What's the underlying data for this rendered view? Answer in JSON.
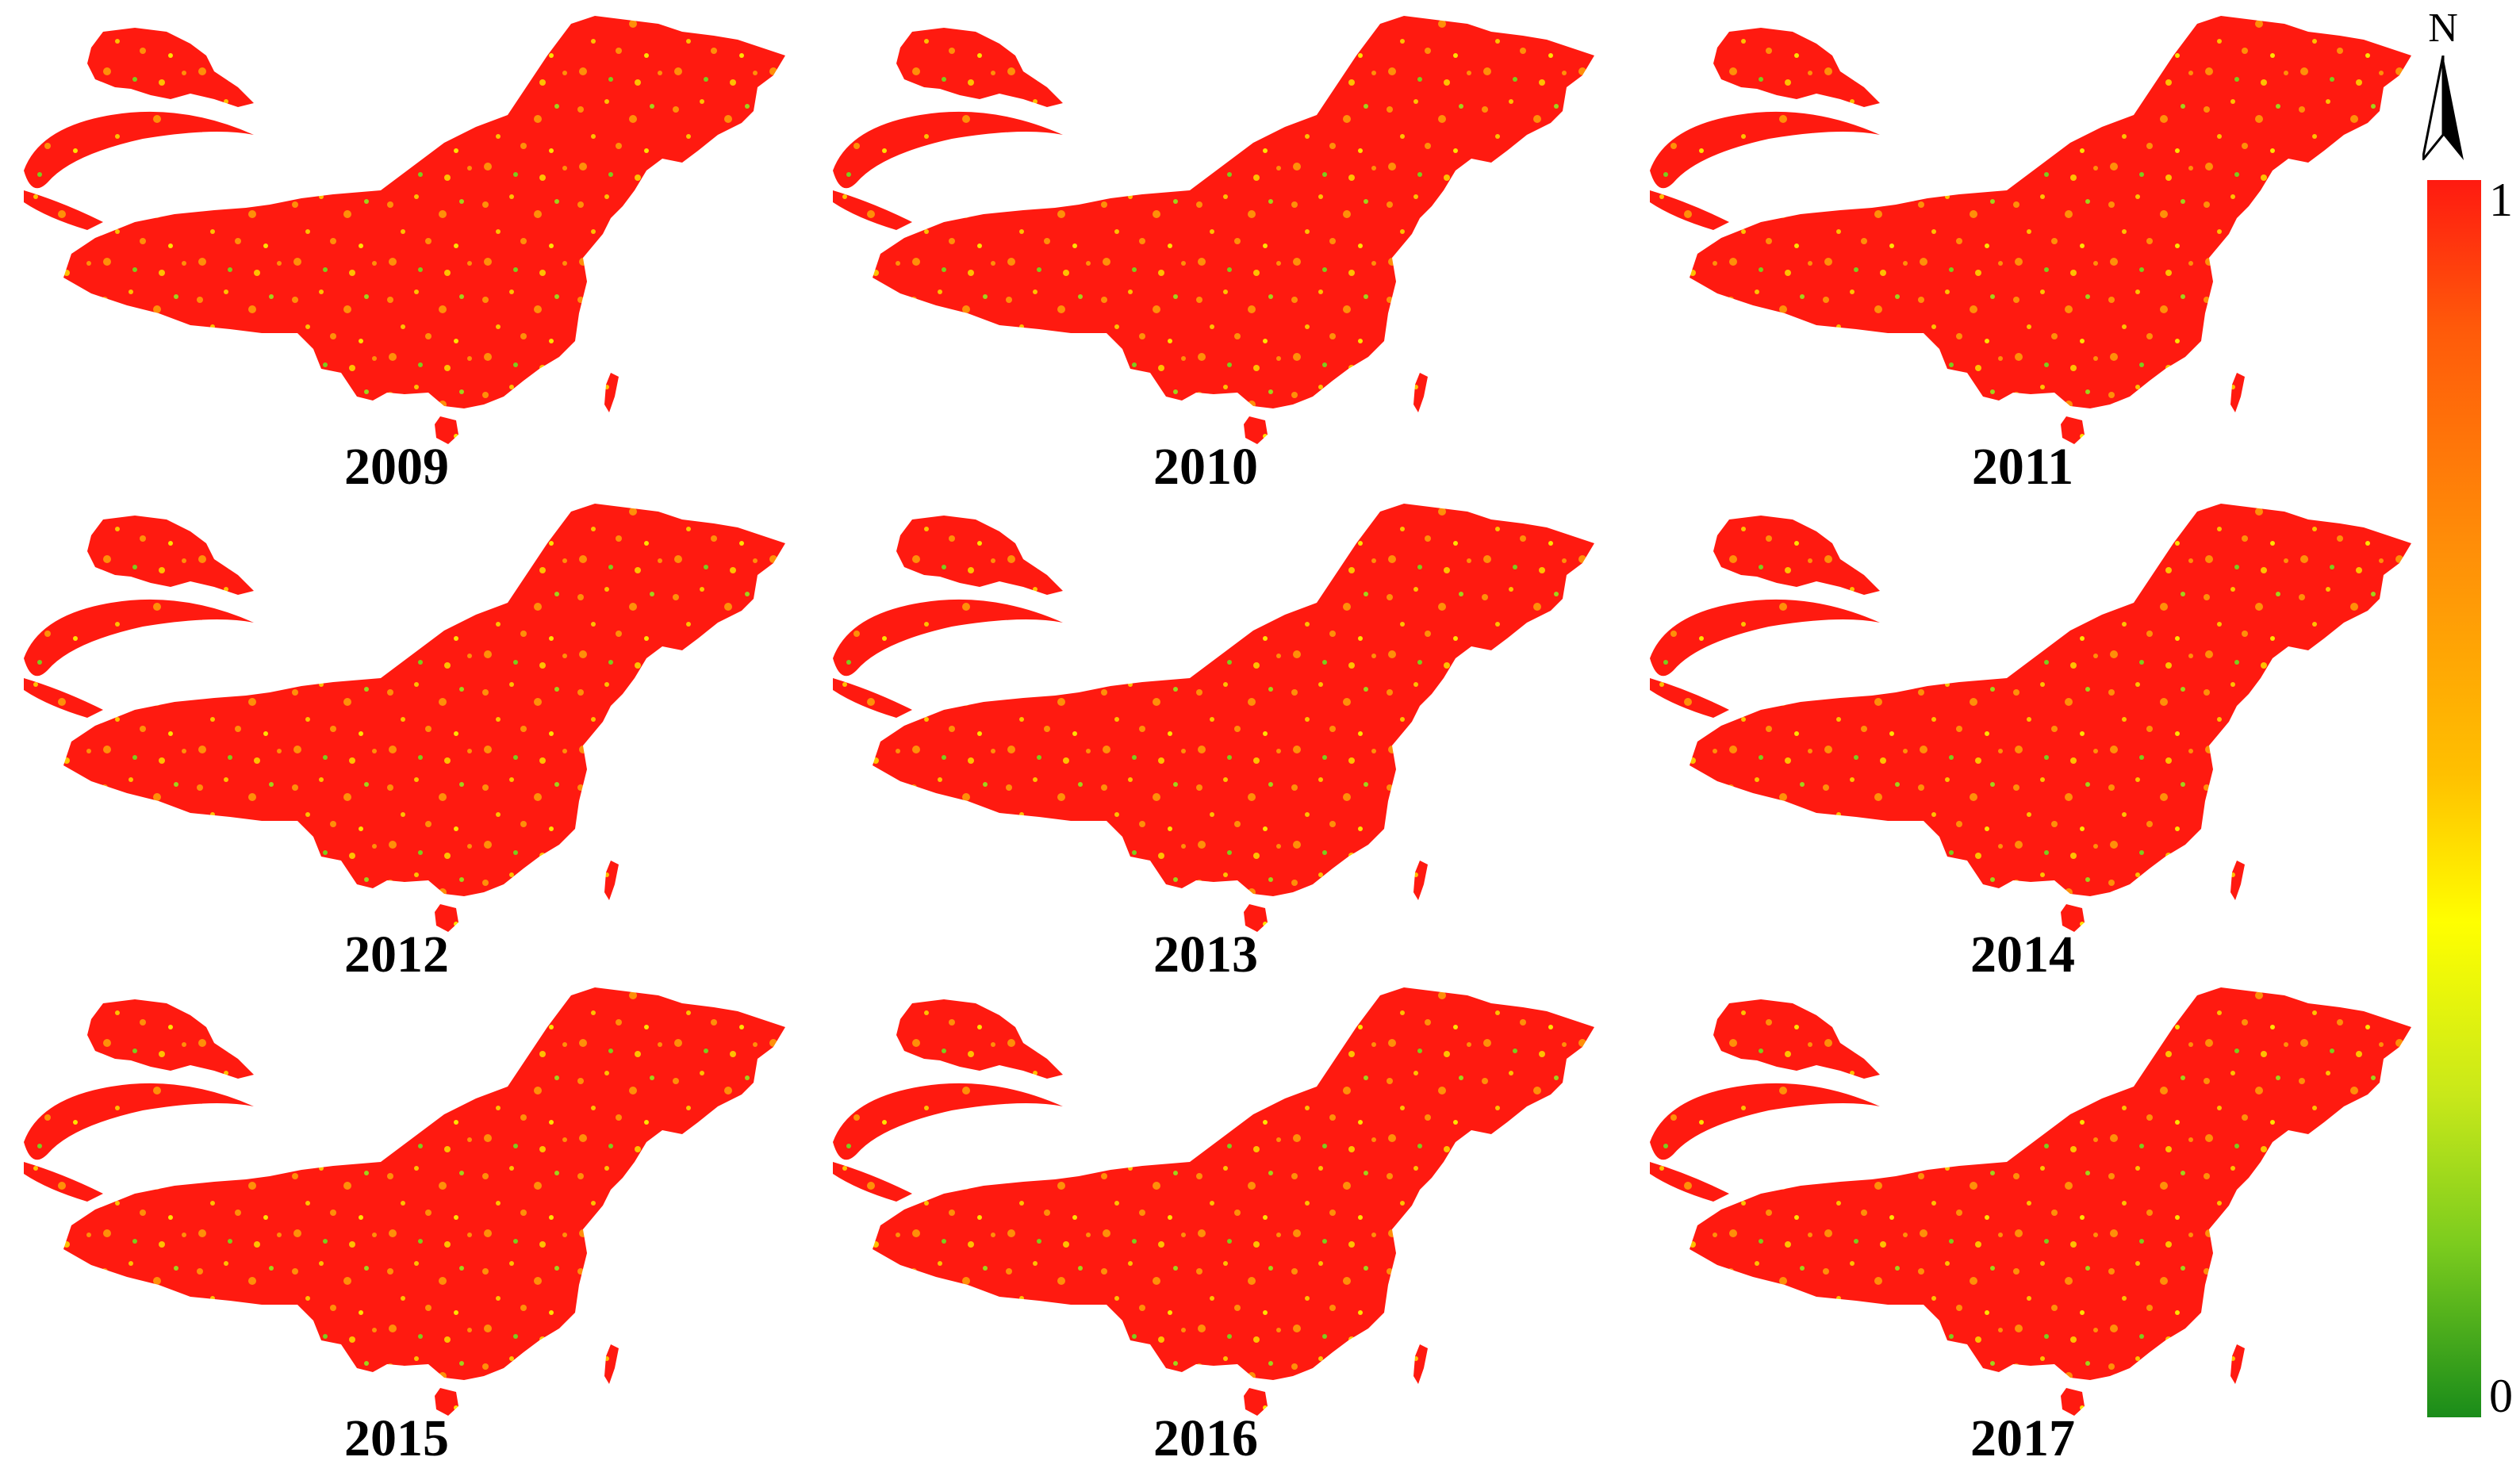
{
  "panels": [
    {
      "year": "2009"
    },
    {
      "year": "2010"
    },
    {
      "year": "2011"
    },
    {
      "year": "2012"
    },
    {
      "year": "2013"
    },
    {
      "year": "2014"
    },
    {
      "year": "2015"
    },
    {
      "year": "2016"
    },
    {
      "year": "2017"
    }
  ],
  "north_arrow": {
    "label": "N"
  },
  "legend": {
    "max_label": "1",
    "min_label": "0",
    "colors": [
      "#ff1a10",
      "#ff8f08",
      "#ffff00",
      "#7ccc1e",
      "#1a8c1a"
    ]
  }
}
